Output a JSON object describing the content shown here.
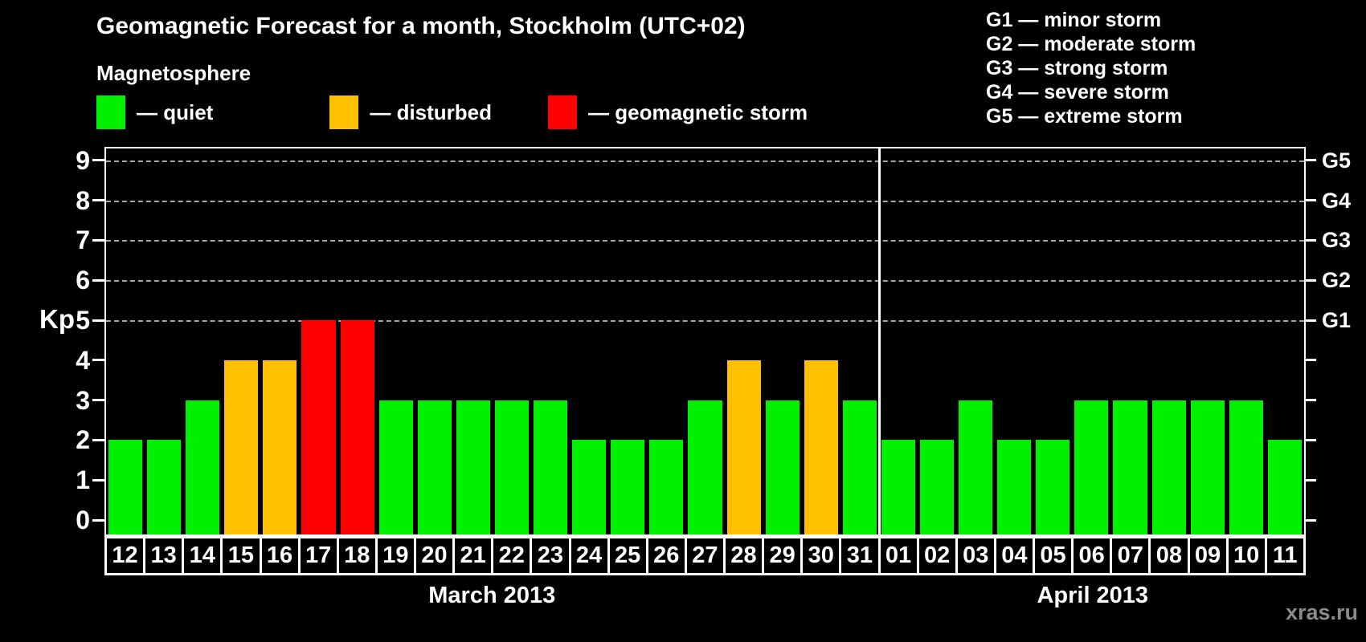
{
  "title": "Geomagnetic Forecast for a month, Stockholm (UTC+02)",
  "legend": {
    "heading": "Magnetosphere",
    "items": [
      {
        "key": "quiet",
        "label": "— quiet",
        "color": "#00F000"
      },
      {
        "key": "disturbed",
        "label": "— disturbed",
        "color": "#FFC000"
      },
      {
        "key": "storm",
        "label": "— geomagnetic storm",
        "color": "#FF0000"
      }
    ]
  },
  "g_legend": [
    "G1 — minor storm",
    "G2 — moderate storm",
    "G3 — strong storm",
    "G4 — severe storm",
    "G5 — extreme storm"
  ],
  "watermark": "xras.ru",
  "chart_data": {
    "type": "bar",
    "title": "Geomagnetic Forecast for a month, Stockholm (UTC+02)",
    "ylabel": "Kp",
    "ylim": [
      -0.4,
      9.4
    ],
    "yticks": [
      0,
      1,
      2,
      3,
      4,
      5,
      6,
      7,
      8,
      9
    ],
    "grid_on_kp": [
      5,
      6,
      7,
      8,
      9
    ],
    "right_axis_labels": [
      {
        "label": "G5",
        "kp": 9
      },
      {
        "label": "G4",
        "kp": 8
      },
      {
        "label": "G3",
        "kp": 7
      },
      {
        "label": "G2",
        "kp": 6
      },
      {
        "label": "G1",
        "kp": 5
      }
    ],
    "status_colors": {
      "quiet": "#00F000",
      "disturbed": "#FFC000",
      "storm": "#FF0000"
    },
    "months": [
      {
        "label": "March 2013",
        "days": [
          {
            "day": "12",
            "kp": 2,
            "status": "quiet"
          },
          {
            "day": "13",
            "kp": 2,
            "status": "quiet"
          },
          {
            "day": "14",
            "kp": 3,
            "status": "quiet"
          },
          {
            "day": "15",
            "kp": 4,
            "status": "disturbed"
          },
          {
            "day": "16",
            "kp": 4,
            "status": "disturbed"
          },
          {
            "day": "17",
            "kp": 5,
            "status": "storm"
          },
          {
            "day": "18",
            "kp": 5,
            "status": "storm"
          },
          {
            "day": "19",
            "kp": 3,
            "status": "quiet"
          },
          {
            "day": "20",
            "kp": 3,
            "status": "quiet"
          },
          {
            "day": "21",
            "kp": 3,
            "status": "quiet"
          },
          {
            "day": "22",
            "kp": 3,
            "status": "quiet"
          },
          {
            "day": "23",
            "kp": 3,
            "status": "quiet"
          },
          {
            "day": "24",
            "kp": 2,
            "status": "quiet"
          },
          {
            "day": "25",
            "kp": 2,
            "status": "quiet"
          },
          {
            "day": "26",
            "kp": 2,
            "status": "quiet"
          },
          {
            "day": "27",
            "kp": 3,
            "status": "quiet"
          },
          {
            "day": "28",
            "kp": 4,
            "status": "disturbed"
          },
          {
            "day": "29",
            "kp": 3,
            "status": "quiet"
          },
          {
            "day": "30",
            "kp": 4,
            "status": "disturbed"
          },
          {
            "day": "31",
            "kp": 3,
            "status": "quiet"
          }
        ]
      },
      {
        "label": "April 2013",
        "days": [
          {
            "day": "01",
            "kp": 2,
            "status": "quiet"
          },
          {
            "day": "02",
            "kp": 2,
            "status": "quiet"
          },
          {
            "day": "03",
            "kp": 3,
            "status": "quiet"
          },
          {
            "day": "04",
            "kp": 2,
            "status": "quiet"
          },
          {
            "day": "05",
            "kp": 2,
            "status": "quiet"
          },
          {
            "day": "06",
            "kp": 3,
            "status": "quiet"
          },
          {
            "day": "07",
            "kp": 3,
            "status": "quiet"
          },
          {
            "day": "08",
            "kp": 3,
            "status": "quiet"
          },
          {
            "day": "09",
            "kp": 3,
            "status": "quiet"
          },
          {
            "day": "10",
            "kp": 3,
            "status": "quiet"
          },
          {
            "day": "11",
            "kp": 2,
            "status": "quiet"
          }
        ]
      }
    ]
  }
}
